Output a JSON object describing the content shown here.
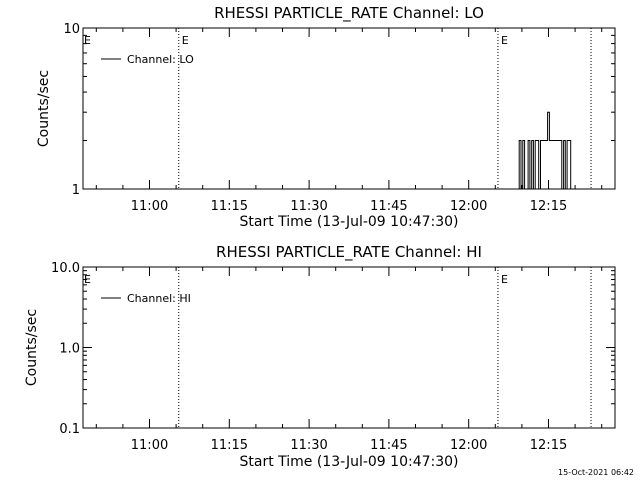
{
  "chart_data": [
    {
      "type": "line",
      "title": "RHESSI PARTICLE_RATE Channel: LO",
      "xlabel": "Start Time (13-Jul-09 10:47:30)",
      "ylabel": "Counts/sec",
      "yscale": "log",
      "ylim": [
        1,
        10
      ],
      "ytick_labels": [
        "1",
        "10"
      ],
      "xlim": [
        "10:47:30",
        "12:27:30"
      ],
      "xticks": [
        "11:00",
        "11:15",
        "11:30",
        "11:45",
        "12:00",
        "12:15"
      ],
      "legend": {
        "placement": "top-left",
        "entries": [
          "Channel: LO"
        ]
      },
      "event_lines": [
        {
          "time": "11:05:30",
          "label": "E"
        },
        {
          "time": "12:05:30",
          "label": "E"
        },
        {
          "time": "12:23:00",
          "label": ""
        }
      ],
      "edge_marker": "E",
      "grid": false,
      "series": [
        {
          "name": "Channel: LO",
          "x": [
            "12:09:20",
            "12:09:40",
            "12:10:00",
            "12:10:20",
            "12:10:40",
            "12:11:00",
            "12:11:20",
            "12:11:40",
            "12:12:00",
            "12:12:20",
            "12:12:40",
            "12:13:00",
            "12:13:20",
            "12:13:40",
            "12:14:00",
            "12:14:20",
            "12:14:40",
            "12:15:00",
            "12:15:20",
            "12:15:40",
            "12:16:00",
            "12:16:20",
            "12:16:40",
            "12:17:00",
            "12:17:20",
            "12:17:40",
            "12:18:00",
            "12:18:20",
            "12:18:40",
            "12:19:00",
            "12:19:20",
            "12:19:40",
            "12:20:00"
          ],
          "values": [
            1,
            2,
            1,
            2,
            1,
            1,
            2,
            1,
            2,
            1,
            2,
            2,
            1,
            2,
            2,
            2,
            2,
            3,
            2,
            2,
            2,
            2,
            2,
            2,
            2,
            1,
            2,
            1,
            2,
            2,
            1,
            1,
            1
          ]
        }
      ]
    },
    {
      "type": "line",
      "title": "RHESSI PARTICLE_RATE Channel: HI",
      "xlabel": "Start Time (13-Jul-09 10:47:30)",
      "ylabel": "Counts/sec",
      "yscale": "log",
      "ylim": [
        0.1,
        10
      ],
      "ytick_labels": [
        "0.1",
        "1.0",
        "10.0"
      ],
      "xlim": [
        "10:47:30",
        "12:27:30"
      ],
      "xticks": [
        "11:00",
        "11:15",
        "11:30",
        "11:45",
        "12:00",
        "12:15"
      ],
      "legend": {
        "placement": "top-left",
        "entries": [
          "Channel: HI"
        ]
      },
      "event_lines": [
        {
          "time": "11:05:30",
          "label": ""
        },
        {
          "time": "12:05:30",
          "label": "E"
        },
        {
          "time": "12:23:00",
          "label": ""
        }
      ],
      "edge_marker": "E",
      "grid": false,
      "series": [
        {
          "name": "Channel: HI",
          "x": [],
          "values": []
        }
      ]
    }
  ],
  "footer": {
    "date_stamp": "15-Oct-2021 06:42"
  }
}
